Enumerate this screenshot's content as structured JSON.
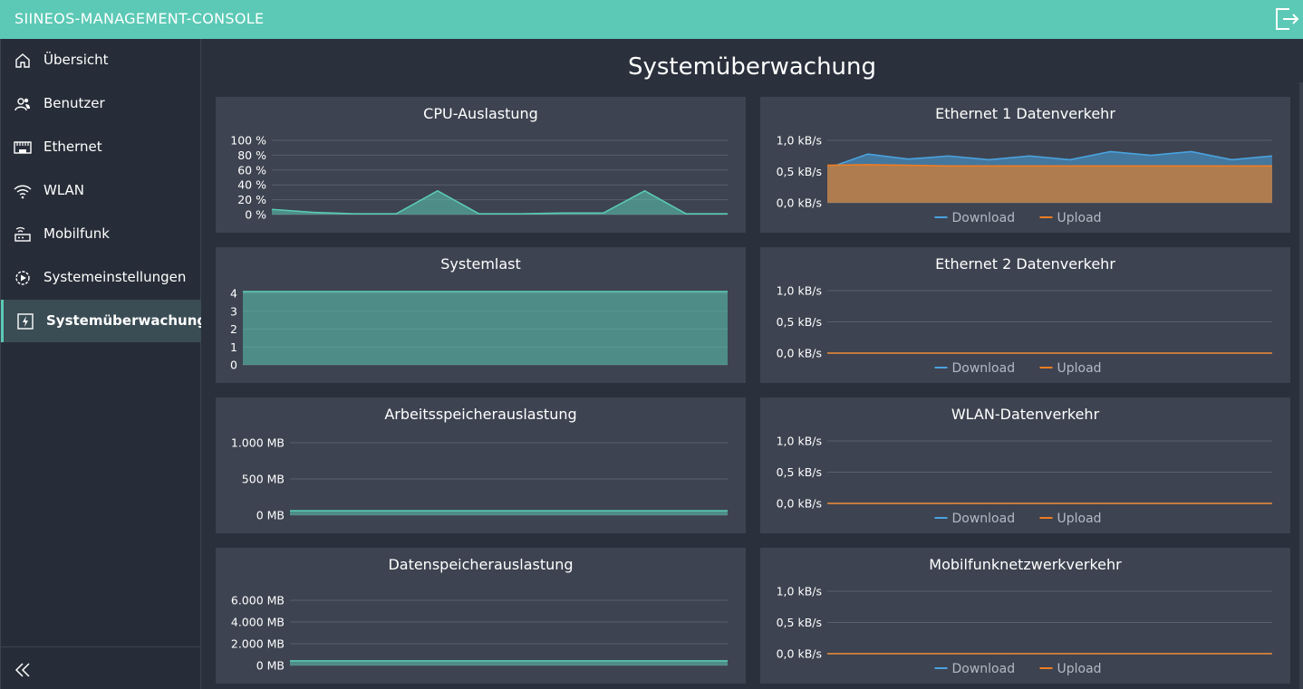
{
  "app": {
    "title": "SIINEOS-MANAGEMENT-CONSOLE"
  },
  "icons": {
    "logout": "logout-icon",
    "collapse": "double-chevron-left-icon"
  },
  "sidebar": {
    "items": [
      {
        "label": "Übersicht",
        "icon": "home-icon",
        "active": false
      },
      {
        "label": "Benutzer",
        "icon": "users-icon",
        "active": false
      },
      {
        "label": "Ethernet",
        "icon": "ethernet-icon",
        "active": false
      },
      {
        "label": "WLAN",
        "icon": "wifi-icon",
        "active": false
      },
      {
        "label": "Mobilfunk",
        "icon": "router-icon",
        "active": false
      },
      {
        "label": "Systemeinstellungen",
        "icon": "settings-icon",
        "active": false
      },
      {
        "label": "Systemüberwachung",
        "icon": "monitor-icon",
        "active": true
      }
    ]
  },
  "page": {
    "title": "Systemüberwachung"
  },
  "colors": {
    "accent": "#5bc9b5",
    "download": "#4aa3df",
    "upload": "#ef7d22"
  },
  "chart_data": [
    {
      "id": "cpu",
      "type": "area",
      "title": "CPU-Auslastung",
      "yticks": [
        "0 %",
        "20 %",
        "40 %",
        "60 %",
        "80 %",
        "100 %"
      ],
      "ylim": [
        0,
        100
      ],
      "series": [
        {
          "values": [
            7,
            3,
            1,
            1,
            32,
            1,
            1,
            2,
            2,
            32,
            1,
            1
          ]
        }
      ]
    },
    {
      "id": "systemlast",
      "type": "area",
      "title": "Systemlast",
      "yticks": [
        "0",
        "1",
        "2",
        "3",
        "4"
      ],
      "ylim": [
        0,
        4
      ],
      "series": [
        {
          "values": [
            4.1,
            4.1
          ]
        }
      ]
    },
    {
      "id": "ram",
      "type": "area",
      "title": "Arbeitsspeicherauslastung",
      "yticks": [
        "0 MB",
        "500 MB",
        "1.000 MB"
      ],
      "ylim": [
        0,
        1000
      ],
      "series": [
        {
          "values": [
            60,
            60
          ]
        }
      ]
    },
    {
      "id": "disk",
      "type": "area",
      "title": "Datenspeicherauslastung",
      "yticks": [
        "0 MB",
        "2.000 MB",
        "4.000 MB",
        "6.000 MB"
      ],
      "ylim": [
        0,
        6000
      ],
      "series": [
        {
          "values": [
            420,
            420
          ]
        }
      ]
    },
    {
      "id": "eth1",
      "type": "area",
      "title": "Ethernet 1 Datenverkehr",
      "yticks": [
        "0,0 kB/s",
        "0,5 kB/s",
        "1,0 kB/s"
      ],
      "ylim": [
        0,
        1
      ],
      "legend": [
        "Download",
        "Upload"
      ],
      "series": [
        {
          "name": "Download",
          "values": [
            0.55,
            0.78,
            0.7,
            0.75,
            0.69,
            0.75,
            0.69,
            0.82,
            0.76,
            0.82,
            0.69,
            0.75
          ]
        },
        {
          "name": "Upload",
          "values": [
            0.6,
            0.61,
            0.6,
            0.59,
            0.59,
            0.59,
            0.59,
            0.59,
            0.59,
            0.59,
            0.59,
            0.59
          ]
        }
      ]
    },
    {
      "id": "eth2",
      "type": "area",
      "title": "Ethernet 2 Datenverkehr",
      "yticks": [
        "0,0 kB/s",
        "0,5 kB/s",
        "1,0 kB/s"
      ],
      "ylim": [
        0,
        1
      ],
      "legend": [
        "Download",
        "Upload"
      ],
      "series": [
        {
          "name": "Download",
          "values": [
            0,
            0
          ]
        },
        {
          "name": "Upload",
          "values": [
            0,
            0
          ]
        }
      ]
    },
    {
      "id": "wlan",
      "type": "area",
      "title": "WLAN-Datenverkehr",
      "yticks": [
        "0,0 kB/s",
        "0,5 kB/s",
        "1,0 kB/s"
      ],
      "ylim": [
        0,
        1
      ],
      "legend": [
        "Download",
        "Upload"
      ],
      "series": [
        {
          "name": "Download",
          "values": [
            0,
            0
          ]
        },
        {
          "name": "Upload",
          "values": [
            0,
            0
          ]
        }
      ]
    },
    {
      "id": "mobile",
      "type": "area",
      "title": "Mobilfunknetzwerkverkehr",
      "yticks": [
        "0,0 kB/s",
        "0,5 kB/s",
        "1,0 kB/s"
      ],
      "ylim": [
        0,
        1
      ],
      "legend": [
        "Download",
        "Upload"
      ],
      "series": [
        {
          "name": "Download",
          "values": [
            0,
            0
          ]
        },
        {
          "name": "Upload",
          "values": [
            0,
            0
          ]
        }
      ]
    }
  ]
}
